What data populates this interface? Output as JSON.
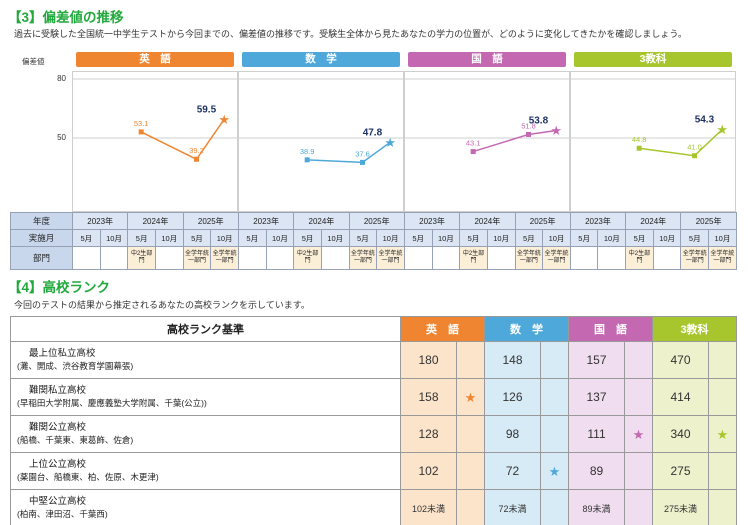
{
  "section3": {
    "title": "【3】偏差値の推移",
    "description": "過去に受験した全国統一中学生テストから今回までの、偏差値の推移です。受験生全体から見たあなたの学力の位置が、どのように変化してきたかを確認しましょう。"
  },
  "chart_data": {
    "type": "line",
    "title": "偏差値の推移",
    "ylabel": "偏差値",
    "yticks": [
      80,
      50
    ],
    "ylim": [
      13,
      80
    ],
    "x": [
      "2024年5月",
      "2025年5月",
      "2025年10月"
    ],
    "series": [
      {
        "name": "英　語",
        "color": "#ef8531",
        "light": "#fce4cb",
        "values": [
          53.1,
          39.2,
          59.5
        ]
      },
      {
        "name": "数　学",
        "color": "#4fa8da",
        "light": "#d7ebf7",
        "values": [
          38.9,
          37.6,
          47.8
        ]
      },
      {
        "name": "国　語",
        "color": "#c468b2",
        "light": "#f0def0",
        "values": [
          43.1,
          51.8,
          53.8
        ]
      },
      {
        "name": "3教科",
        "color": "#a7c62d",
        "light": "#edf2cc",
        "values": [
          44.8,
          41.0,
          54.3
        ]
      }
    ],
    "final_label_color": "#1d3264",
    "legend_position": "top",
    "grid": true
  },
  "axis_table": {
    "row_labels": [
      "年度",
      "実施月",
      "部門"
    ],
    "years": [
      "2023年",
      "2024年",
      "2025年"
    ],
    "months": [
      "5月",
      "10月"
    ],
    "bumon": [
      "",
      "",
      "中2生部門",
      "",
      "全学年統一部門",
      "全学年統一部門"
    ]
  },
  "section4": {
    "title": "【4】高校ランク",
    "description": "今回のテストの結果から推定されるあなたの高校ランクを示しています。"
  },
  "rank_table": {
    "header": "高校ランク基準",
    "rows": [
      {
        "rank": "最上位私立高校",
        "schools": "(灘、開成、渋谷教育学園幕張)",
        "values": [
          "180",
          "148",
          "157",
          "470"
        ],
        "stars": [
          0,
          0,
          0,
          0
        ]
      },
      {
        "rank": "難関私立高校",
        "schools": "(早稲田大学附属、慶應義塾大学附属、千葉(公立))",
        "values": [
          "158",
          "126",
          "137",
          "414"
        ],
        "stars": [
          1,
          0,
          0,
          0
        ]
      },
      {
        "rank": "難関公立高校",
        "schools": "(船橋、千葉東、東葛飾、佐倉)",
        "values": [
          "128",
          "98",
          "111",
          "340"
        ],
        "stars": [
          0,
          0,
          1,
          1
        ]
      },
      {
        "rank": "上位公立高校",
        "schools": "(薬園台、船橋東、柏、佐原、木更津)",
        "values": [
          "102",
          "72",
          "89",
          "275"
        ],
        "stars": [
          0,
          1,
          0,
          0
        ]
      },
      {
        "rank": "中堅公立高校",
        "schools": "(柏南、津田沼、千葉西)",
        "values": [
          "102未満",
          "72未満",
          "89未満",
          "275未満"
        ],
        "stars": [
          0,
          0,
          0,
          0
        ]
      }
    ],
    "star_glyph": "★"
  },
  "colors": {
    "title_green": "#21a93c"
  }
}
